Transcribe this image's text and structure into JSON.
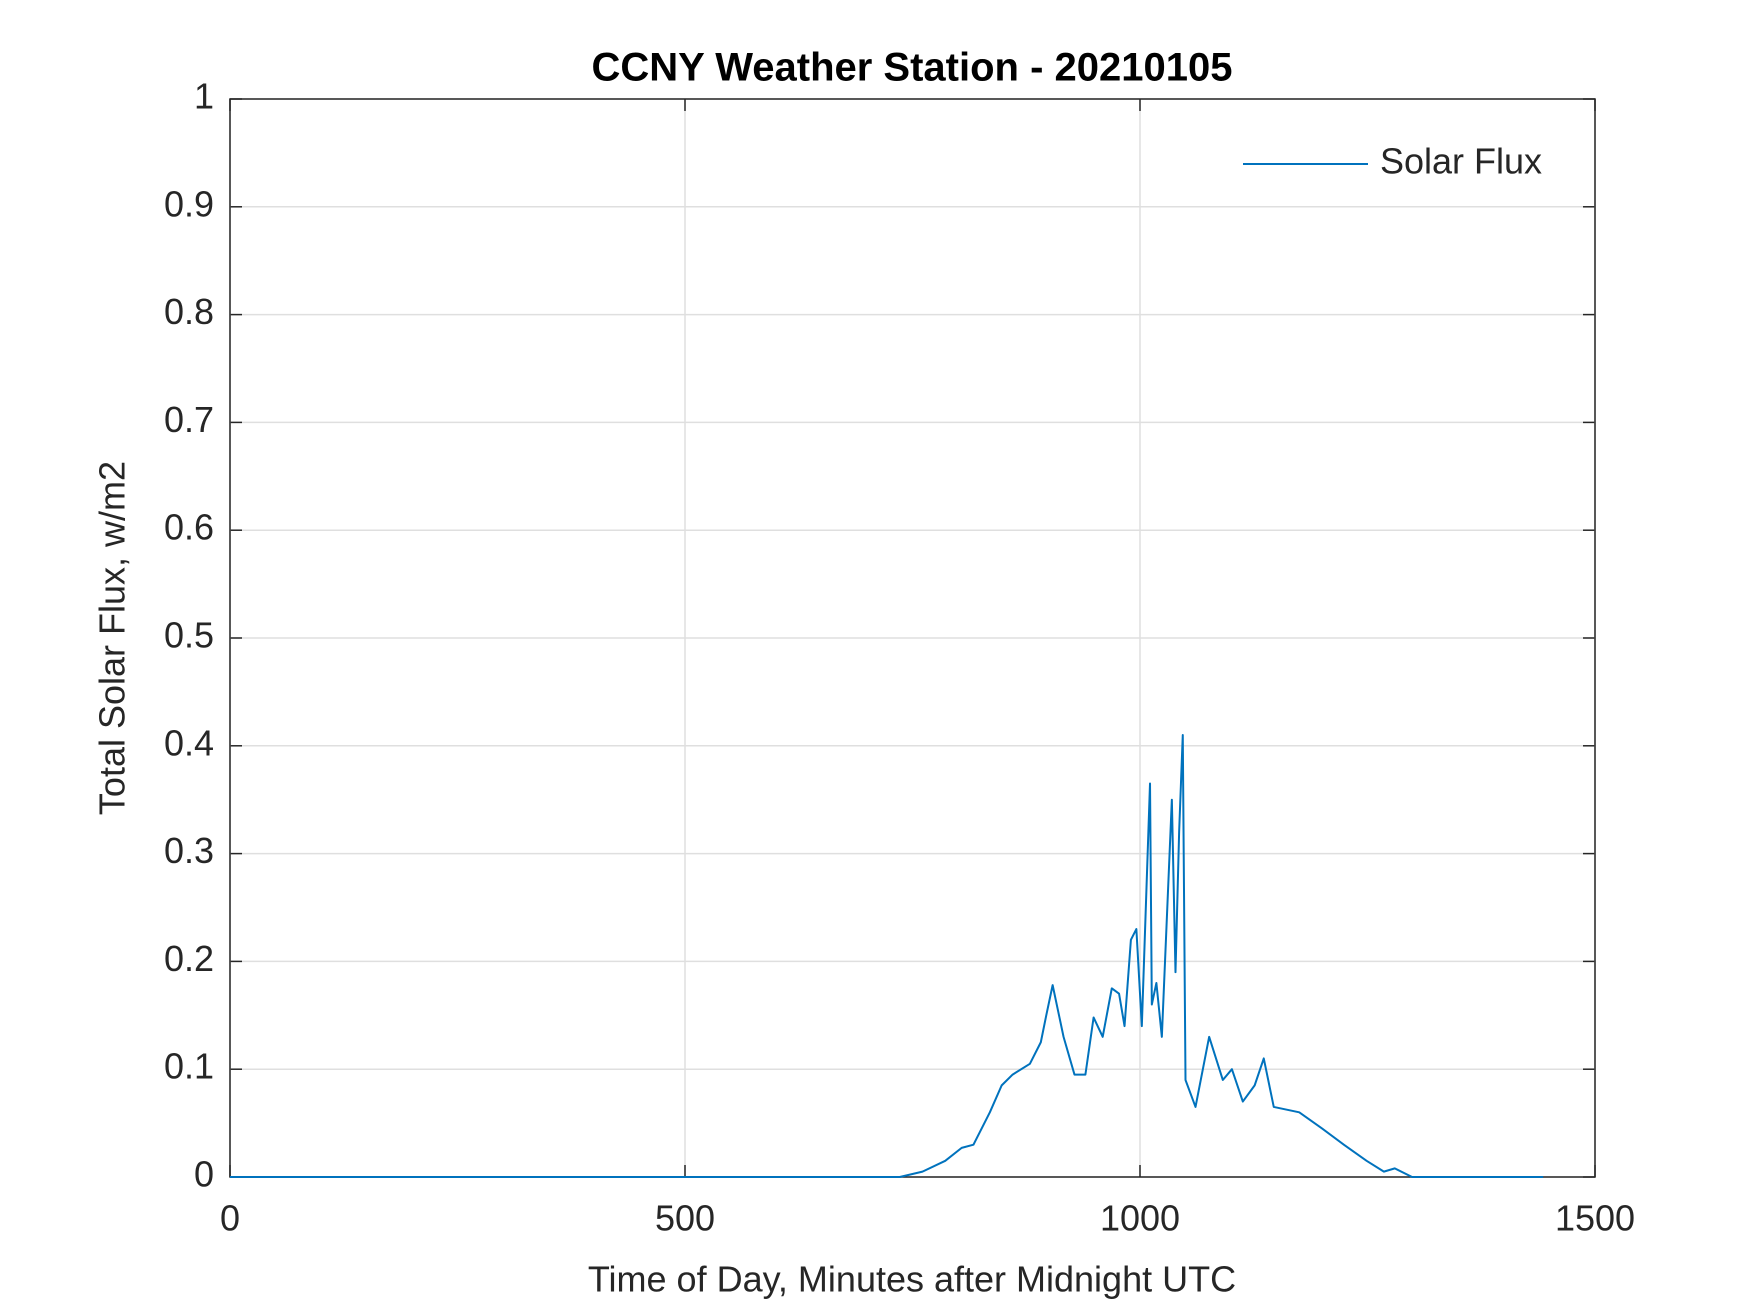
{
  "chart_data": {
    "type": "line",
    "title": "CCNY Weather Station - 20210105",
    "xlabel": "Time of Day, Minutes after Midnight UTC",
    "ylabel": "Total Solar Flux, w/m2",
    "xlim": [
      0,
      1500
    ],
    "xticks": [
      0,
      500,
      1000,
      1500
    ],
    "ylim": [
      0,
      1
    ],
    "yticks": [
      0,
      0.1,
      0.2,
      0.3,
      0.4,
      0.5,
      0.6,
      0.7,
      0.8,
      0.9,
      1
    ],
    "grid": true,
    "legend": "upper right",
    "series": [
      {
        "name": "Solar Flux",
        "color": "#0072bd",
        "x": [
          0,
          736,
          761,
          786,
          804,
          817,
          835,
          848,
          860,
          879,
          891,
          897,
          904,
          916,
          928,
          940,
          949,
          959,
          969,
          977,
          983,
          990,
          996,
          1002,
          1011,
          1013,
          1018,
          1024,
          1035,
          1039,
          1043,
          1047,
          1050,
          1061,
          1076,
          1091,
          1101,
          1113,
          1126,
          1136,
          1147,
          1175,
          1200,
          1224,
          1249,
          1268,
          1280,
          1299,
          1443
        ],
        "values": [
          0,
          0,
          0.005,
          0.015,
          0.027,
          0.03,
          0.06,
          0.085,
          0.095,
          0.105,
          0.125,
          0.15,
          0.178,
          0.13,
          0.095,
          0.095,
          0.148,
          0.13,
          0.175,
          0.17,
          0.14,
          0.22,
          0.23,
          0.14,
          0.365,
          0.16,
          0.18,
          0.13,
          0.35,
          0.19,
          0.32,
          0.41,
          0.09,
          0.065,
          0.13,
          0.09,
          0.1,
          0.07,
          0.085,
          0.11,
          0.065,
          0.06,
          0.045,
          0.03,
          0.015,
          0.005,
          0.008,
          0,
          0
        ]
      }
    ]
  }
}
